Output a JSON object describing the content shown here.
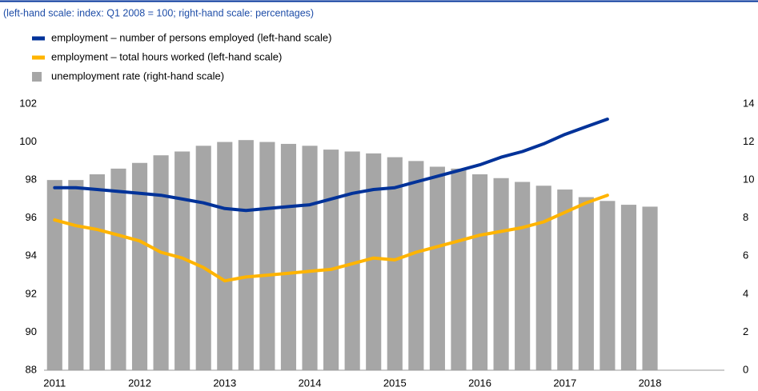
{
  "chart_data": {
    "type": "combo",
    "subtitle": "(left-hand scale: index: Q1 2008 = 100; right-hand scale: percentages)",
    "categories": [
      "2011",
      null,
      null,
      null,
      "2012",
      null,
      null,
      null,
      "2013",
      null,
      null,
      null,
      "2014",
      null,
      null,
      null,
      "2015",
      null,
      null,
      null,
      "2016",
      null,
      null,
      null,
      "2017",
      null,
      null,
      null,
      "2018",
      null,
      null,
      null
    ],
    "series": [
      {
        "name": "employment – number of persons employed (left-hand scale)",
        "type": "line",
        "color": "#003299",
        "values": [
          97.6,
          97.6,
          97.5,
          97.4,
          97.3,
          97.2,
          97.0,
          96.8,
          96.5,
          96.4,
          96.5,
          96.6,
          96.7,
          97.0,
          97.3,
          97.5,
          97.6,
          97.9,
          98.2,
          98.5,
          98.8,
          99.2,
          99.5,
          99.9,
          100.4,
          100.8,
          101.2,
          null,
          null,
          null,
          null,
          null
        ]
      },
      {
        "name": "employment – total hours worked (left-hand scale)",
        "type": "line",
        "color": "#ffb400",
        "values": [
          95.9,
          95.6,
          95.4,
          95.1,
          94.8,
          94.2,
          93.9,
          93.4,
          92.7,
          92.9,
          93.0,
          93.1,
          93.2,
          93.3,
          93.6,
          93.9,
          93.8,
          94.2,
          94.5,
          94.8,
          95.1,
          95.3,
          95.5,
          95.8,
          96.3,
          96.8,
          97.2,
          null,
          null,
          null,
          null,
          null
        ]
      },
      {
        "name": "unemployment rate (right-hand scale)",
        "type": "bar",
        "axis": "y2",
        "color": "#a6a6a6",
        "values": [
          10.0,
          10.0,
          10.3,
          10.6,
          10.9,
          11.3,
          11.5,
          11.8,
          12.0,
          12.1,
          12.0,
          11.9,
          11.8,
          11.6,
          11.5,
          11.4,
          11.2,
          11.0,
          10.7,
          10.6,
          10.3,
          10.1,
          9.9,
          9.7,
          9.5,
          9.1,
          8.9,
          8.7,
          8.6,
          null,
          null,
          null
        ]
      }
    ],
    "ylim": [
      88,
      102
    ],
    "yticks": [
      88,
      90,
      92,
      94,
      96,
      98,
      100,
      102
    ],
    "y2lim": [
      0,
      14
    ],
    "y2ticks": [
      0,
      2,
      4,
      6,
      8,
      10,
      12,
      14
    ],
    "grid": false
  }
}
